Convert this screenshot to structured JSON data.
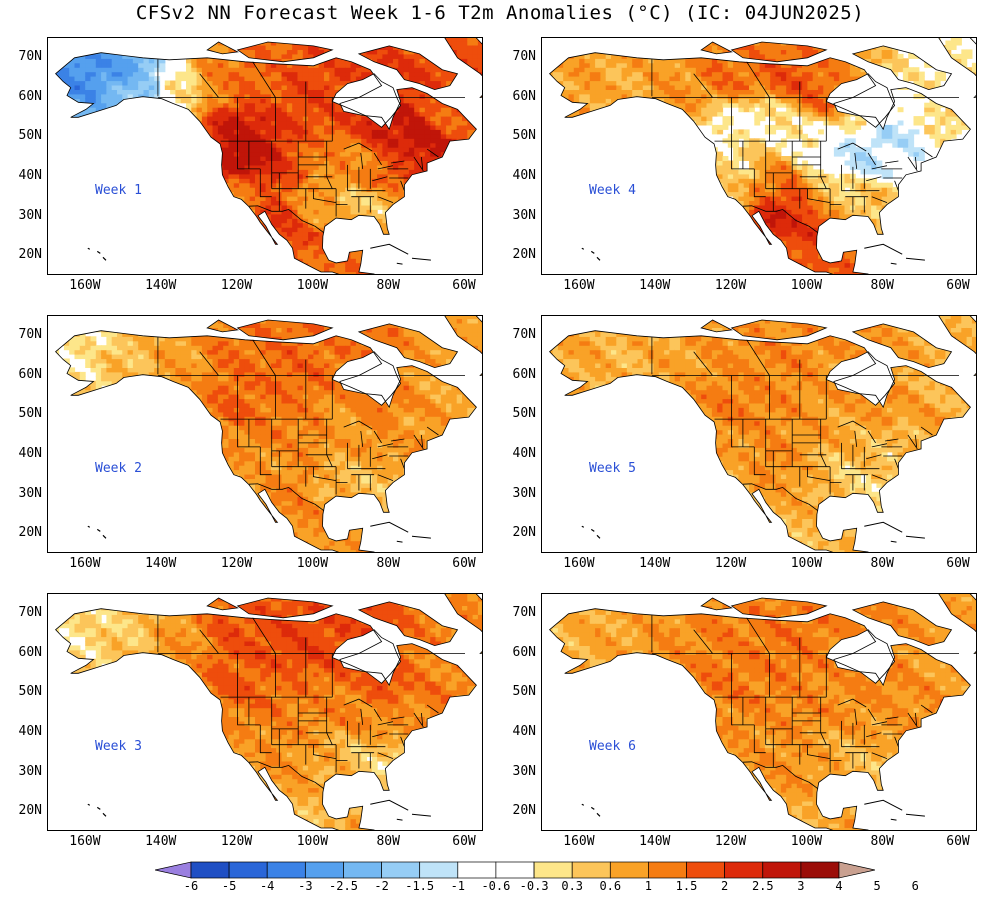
{
  "title": "CFSv2 NN Forecast Week 1-6 T2m Anomalies (°C) (IC: 04JUN2025)",
  "lat_ticks": [
    "70N",
    "60N",
    "50N",
    "40N",
    "30N",
    "20N"
  ],
  "lon_ticks": [
    "160W",
    "140W",
    "120W",
    "100W",
    "80W",
    "60W"
  ],
  "panels": [
    {
      "label": "Week 1"
    },
    {
      "label": "Week 4"
    },
    {
      "label": "Week 2"
    },
    {
      "label": "Week 5"
    },
    {
      "label": "Week 3"
    },
    {
      "label": "Week 6"
    }
  ],
  "colorbar": {
    "labels": [
      "-6",
      "-5",
      "-4",
      "-3",
      "-2.5",
      "-2",
      "-1.5",
      "-1",
      "-0.6",
      "-0.3",
      "0.3",
      "0.6",
      "1",
      "1.5",
      "2",
      "2.5",
      "3",
      "4",
      "5",
      "6"
    ],
    "colors": [
      "#9a7fe0",
      "#1f4fc4",
      "#2a66d8",
      "#3b82e6",
      "#55a0ee",
      "#74b8f2",
      "#96cdf5",
      "#bfe3f8",
      "#ffffff",
      "#ffffff",
      "#fde68a",
      "#fcc55a",
      "#f9a227",
      "#f57c12",
      "#ee4d0c",
      "#dd2a0a",
      "#c01509",
      "#9b0d08",
      "#c9a090"
    ]
  }
}
